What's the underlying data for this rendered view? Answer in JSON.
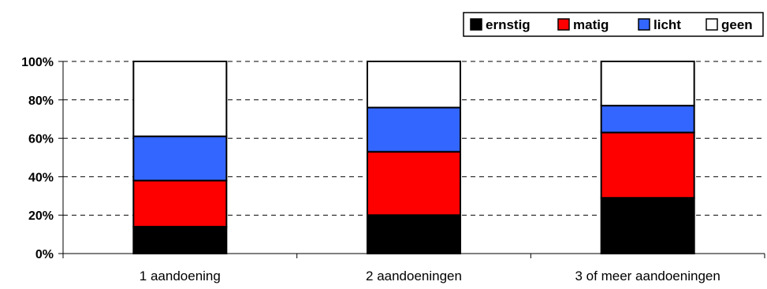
{
  "chart_data": {
    "type": "bar",
    "stacked": true,
    "stack_mode": "percent",
    "categories": [
      "1 aandoening",
      "2 aandoeningen",
      "3 of meer aandoeningen"
    ],
    "series": [
      {
        "name": "ernstig",
        "color": "#000000",
        "values": [
          14,
          20,
          29
        ]
      },
      {
        "name": "matig",
        "color": "#ff0000",
        "values": [
          24,
          33,
          34
        ]
      },
      {
        "name": "licht",
        "color": "#3366ff",
        "values": [
          23,
          23,
          14
        ]
      },
      {
        "name": "geen",
        "color": "#ffffff",
        "values": [
          39,
          24,
          23
        ]
      }
    ],
    "ylim": [
      0,
      100
    ],
    "yticks": [
      0,
      20,
      40,
      60,
      80,
      100
    ],
    "ytick_labels": [
      "0%",
      "20%",
      "40%",
      "60%",
      "80%",
      "100%"
    ],
    "grid": "horizontal dashed",
    "legend_position": "top-right",
    "title": "",
    "xlabel": "",
    "ylabel": ""
  }
}
